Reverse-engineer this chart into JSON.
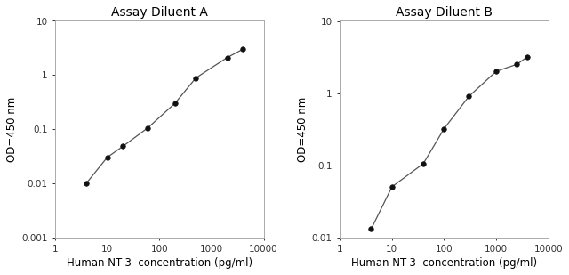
{
  "panel_A": {
    "title": "Assay Diluent A",
    "x": [
      4,
      10,
      20,
      60,
      200,
      500,
      2000,
      4000
    ],
    "y": [
      0.01,
      0.03,
      0.048,
      0.105,
      0.3,
      0.88,
      2.1,
      3.0
    ],
    "ylim": [
      0.001,
      10
    ],
    "xlim": [
      1,
      10000
    ],
    "yticks": [
      0.001,
      0.01,
      0.1,
      1,
      10
    ],
    "ytick_labels": [
      "0.001",
      "0.01",
      "0.1",
      "1",
      "10"
    ],
    "xticks": [
      1,
      10,
      100,
      1000,
      10000
    ],
    "xtick_labels": [
      "1",
      "10",
      "100",
      "1000",
      "10000"
    ]
  },
  "panel_B": {
    "title": "Assay Diluent B",
    "x": [
      4,
      10,
      40,
      100,
      300,
      1000,
      2500,
      4000
    ],
    "y": [
      0.013,
      0.05,
      0.105,
      0.32,
      0.9,
      2.0,
      2.5,
      3.2
    ],
    "ylim": [
      0.01,
      10
    ],
    "xlim": [
      1,
      10000
    ],
    "yticks": [
      0.01,
      0.1,
      1,
      10
    ],
    "ytick_labels": [
      "0.01",
      "0.1",
      "1",
      "10"
    ],
    "xticks": [
      1,
      10,
      100,
      1000,
      10000
    ],
    "xtick_labels": [
      "1",
      "10",
      "100",
      "1000",
      "10000"
    ]
  },
  "xlabel": "Human NT-3  concentration (pg/ml)",
  "ylabel": "OD=450 nm",
  "line_color": "#555555",
  "marker_color": "#111111",
  "marker_size": 4,
  "bg_color": "#ffffff",
  "title_fontsize": 10,
  "label_fontsize": 8.5,
  "tick_fontsize": 7.5
}
